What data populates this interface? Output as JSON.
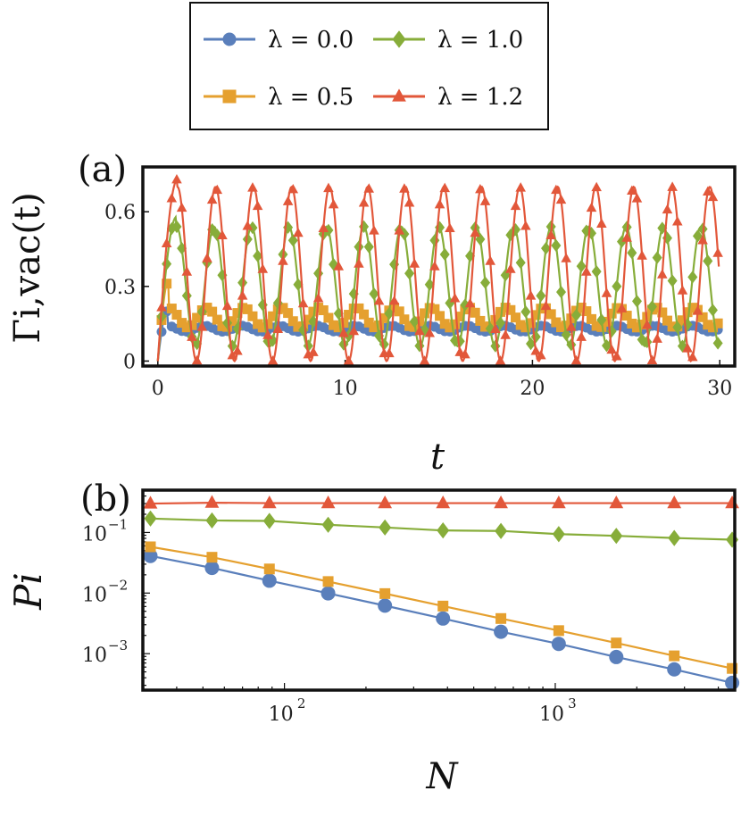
{
  "legend": {
    "entries": [
      {
        "label": "λ = 0.0",
        "color": "#5a7fbb",
        "marker": "circle"
      },
      {
        "label": "λ = 1.0",
        "color": "#87ad3a",
        "marker": "diamond"
      },
      {
        "label": "λ = 0.5",
        "color": "#e5a02f",
        "marker": "square"
      },
      {
        "label": "λ = 1.2",
        "color": "#e2573a",
        "marker": "triangle"
      }
    ]
  },
  "chart_data": [
    {
      "panel_label": "(a)",
      "type": "line",
      "xlabel": "t",
      "ylabel": "Γi,vac(t)",
      "xlim": [
        -0.8,
        30.8
      ],
      "ylim": [
        -0.02,
        0.78
      ],
      "xticks": [
        0,
        10,
        20,
        30
      ],
      "xtick_labels": [
        "0",
        "10",
        "20",
        "30"
      ],
      "yticks": [
        0,
        0.3,
        0.6
      ],
      "ytick_labels": [
        "0",
        "0.3",
        "0.6"
      ],
      "series": [
        {
          "name": "λ = 0.0",
          "color": "#5a7fbb",
          "marker": "circle",
          "model": {
            "base": 0.13,
            "amp": 0.012,
            "period": 2.0,
            "peak": 0.2,
            "peak_t": 0.5,
            "min_start": 0.0
          }
        },
        {
          "name": "λ = 0.5",
          "color": "#e5a02f",
          "marker": "square",
          "model": {
            "base": 0.175,
            "amp": 0.04,
            "period": 2.0,
            "peak": 0.33,
            "peak_t": 0.6,
            "min_start": 0.0
          }
        },
        {
          "name": "λ = 1.0",
          "color": "#87ad3a",
          "marker": "diamond",
          "model": {
            "base": 0.3,
            "amp": 0.24,
            "period": 2.0,
            "peak": 0.58,
            "peak_t": 1.0,
            "min_start": 0.0
          }
        },
        {
          "name": "λ = 1.2",
          "color": "#e2573a",
          "marker": "triangle",
          "model": {
            "base": 0.35,
            "amp": 0.35,
            "period": 2.03,
            "peak": 0.73,
            "peak_t": 1.05,
            "min_start": 0.0
          }
        }
      ]
    },
    {
      "panel_label": "(b)",
      "type": "line",
      "scale": "log-log",
      "xlabel": "N",
      "ylabel": "Pi",
      "xlim": [
        30,
        4600
      ],
      "ylim": [
        0.00025,
        0.5
      ],
      "xticks": [
        100,
        1000
      ],
      "xtick_labels": [
        "10",
        "10"
      ],
      "xtick_exponents": [
        "2",
        "3"
      ],
      "yticks": [
        0.1,
        0.01,
        0.001
      ],
      "ytick_labels": [
        "10",
        "10",
        "10"
      ],
      "ytick_exponents": [
        "−1",
        "−2",
        "−3"
      ],
      "x": [
        32,
        54,
        88,
        145,
        235,
        385,
        630,
        1030,
        1680,
        2750,
        4500
      ],
      "series": [
        {
          "name": "λ = 0.0",
          "color": "#5a7fbb",
          "marker": "circle",
          "values": [
            0.041,
            0.026,
            0.016,
            0.0099,
            0.0062,
            0.0038,
            0.0023,
            0.00145,
            0.00088,
            0.00055,
            0.00033
          ]
        },
        {
          "name": "λ = 0.5",
          "color": "#e5a02f",
          "marker": "square",
          "values": [
            0.058,
            0.039,
            0.025,
            0.0155,
            0.0098,
            0.0061,
            0.0038,
            0.0024,
            0.0015,
            0.00092,
            0.00057
          ]
        },
        {
          "name": "λ = 1.0",
          "color": "#87ad3a",
          "marker": "diamond",
          "values": [
            0.17,
            0.158,
            0.155,
            0.134,
            0.121,
            0.108,
            0.106,
            0.094,
            0.088,
            0.081,
            0.076
          ]
        },
        {
          "name": "λ = 1.2",
          "color": "#e2573a",
          "marker": "triangle",
          "values": [
            0.3,
            0.31,
            0.305,
            0.305,
            0.305,
            0.305,
            0.305,
            0.305,
            0.305,
            0.305,
            0.305
          ]
        }
      ]
    }
  ]
}
